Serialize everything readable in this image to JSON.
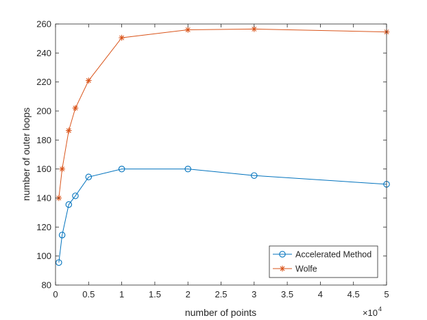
{
  "chart_data": {
    "type": "line",
    "xlabel": "number of points",
    "ylabel": "number of outer loops",
    "x_exponent_label": "×10",
    "x_exponent_power": "4",
    "xlim": [
      0,
      50000
    ],
    "ylim": [
      80,
      260
    ],
    "xticks": [
      0,
      5000,
      10000,
      15000,
      20000,
      25000,
      30000,
      35000,
      40000,
      45000,
      50000
    ],
    "xtick_labels": [
      "0",
      "0.5",
      "1",
      "1.5",
      "2",
      "2.5",
      "3",
      "3.5",
      "4",
      "4.5",
      "5"
    ],
    "yticks": [
      80,
      100,
      120,
      140,
      160,
      180,
      200,
      220,
      240,
      260
    ],
    "ytick_labels": [
      "80",
      "100",
      "120",
      "140",
      "160",
      "180",
      "200",
      "220",
      "240",
      "260"
    ],
    "grid": false,
    "legend_position": "bottom-right",
    "series": [
      {
        "name": "Accelerated Method",
        "color": "#0072BD",
        "marker": "circle",
        "x": [
          500,
          1000,
          2000,
          3000,
          5000,
          10000,
          20000,
          30000,
          50000
        ],
        "y": [
          95.5,
          114.5,
          135.5,
          141.5,
          154.5,
          160,
          160,
          155.5,
          149.5
        ]
      },
      {
        "name": "Wolfe",
        "color": "#D95319",
        "marker": "star",
        "x": [
          500,
          1000,
          2000,
          3000,
          5000,
          10000,
          20000,
          30000,
          50000
        ],
        "y": [
          140,
          160,
          186.5,
          202,
          221,
          250.5,
          256,
          256.5,
          254.5
        ]
      }
    ]
  }
}
